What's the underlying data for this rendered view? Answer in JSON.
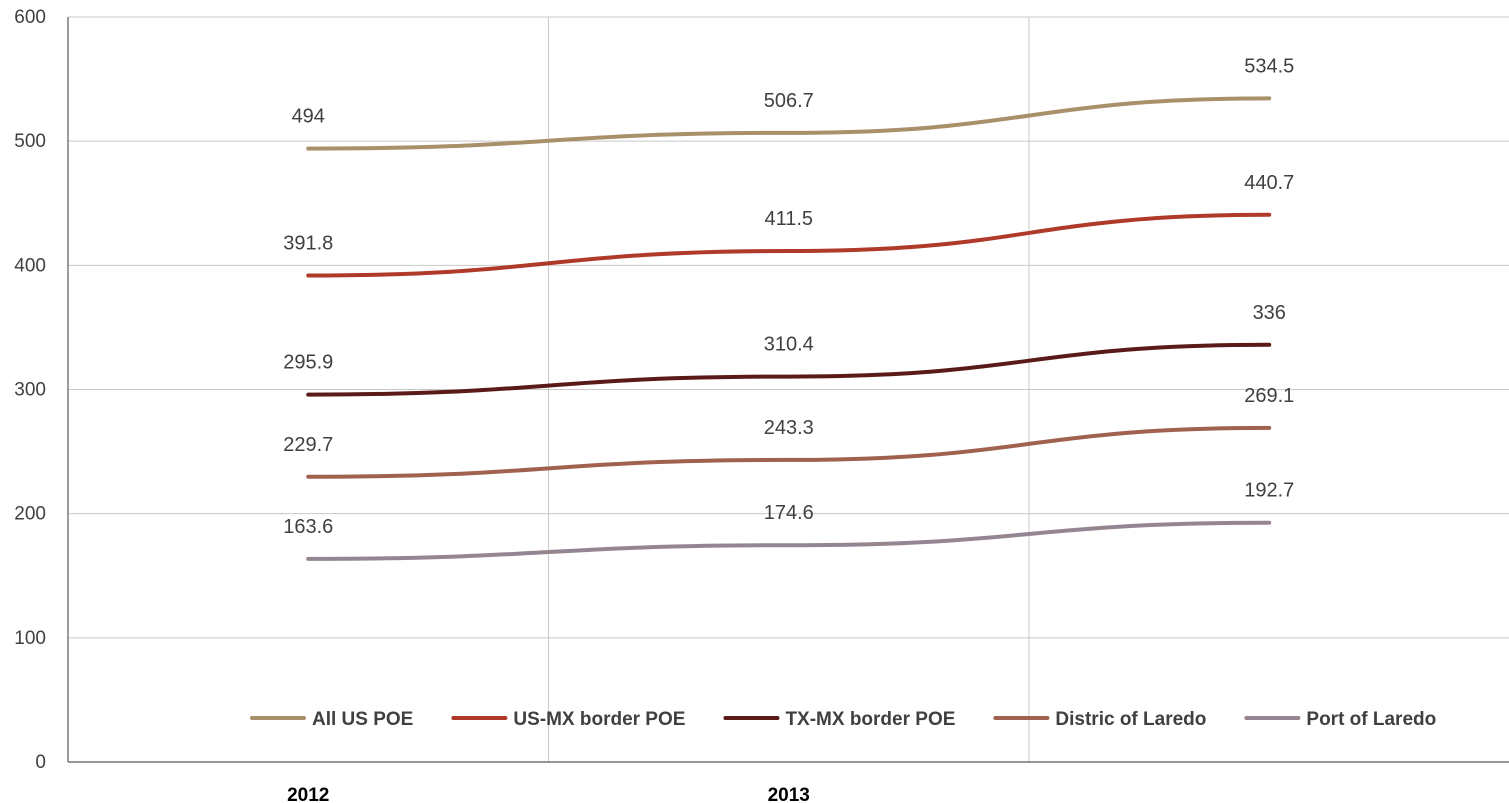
{
  "chart_data": {
    "type": "line",
    "title": "",
    "xlabel": "",
    "ylabel": "",
    "ylim": [
      0,
      600
    ],
    "yticks": [
      0,
      100,
      200,
      300,
      400,
      500,
      600
    ],
    "x_labels": [
      "2012",
      "2013",
      ""
    ],
    "grid": "horizontal and vertical",
    "legend_position": "bottom",
    "series": [
      {
        "name": "All US POE",
        "color": "#a8906a",
        "values": [
          494,
          506.7,
          534.5
        ],
        "labels": [
          "494",
          "506.7",
          "534.5"
        ]
      },
      {
        "name": "US-MX border POE",
        "color": "#b03a2a",
        "values": [
          391.8,
          411.5,
          440.7
        ],
        "labels": [
          "391.8",
          "411.5",
          "440.7"
        ]
      },
      {
        "name": "TX-MX border POE",
        "color": "#5a1a18",
        "values": [
          295.9,
          310.4,
          336
        ],
        "labels": [
          "295.9",
          "310.4",
          "336"
        ]
      },
      {
        "name": "Distric of Laredo",
        "color": "#a0614f",
        "values": [
          229.7,
          243.3,
          269.1
        ],
        "labels": [
          "229.7",
          "243.3",
          "269.1"
        ]
      },
      {
        "name": "Port of Laredo",
        "color": "#958590",
        "values": [
          163.6,
          174.6,
          192.7
        ],
        "labels": [
          "163.6",
          "174.6",
          "192.7"
        ]
      }
    ]
  }
}
